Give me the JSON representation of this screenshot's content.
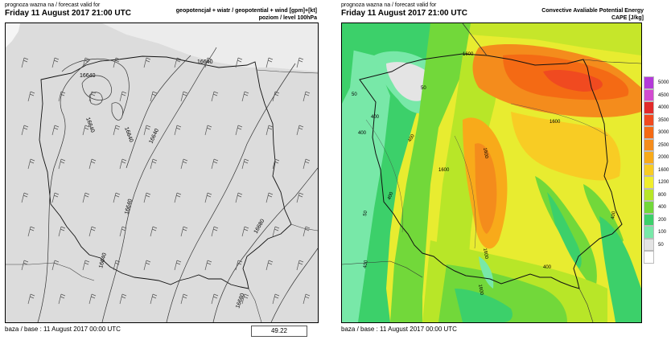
{
  "left": {
    "forecast_label": "prognoza wazna na / forecast valid for",
    "date": "Friday 11 August 2017  21:00 UTC",
    "param_line1": "geopotencjał + wiatr / geopotential + wind [gpm]+[kt]",
    "param_line2": "poziom / level 100hPa",
    "base_label": "baza / base : 11 August 2017  00:00 UTC",
    "value_box": "49.22",
    "contours": [
      "16640",
      "16640",
      "16640",
      "16640",
      "16640",
      "16640",
      "16680",
      "16680"
    ]
  },
  "right": {
    "forecast_label": "prognoza wazna na / forecast valid for",
    "date": "Friday 11 August 2017  21:00 UTC",
    "title_line1": "Convective Avaliable Potential Energy",
    "title_line2": "CAPE [J/kg]",
    "base_label": "baza / base : 11 August 2017  00:00 UTC",
    "map_labels": [
      "1600",
      "1600",
      "1600",
      "1600",
      "1600",
      "1600",
      "400",
      "400",
      "400",
      "400",
      "400",
      "400",
      "50",
      "50",
      "50",
      "400"
    ],
    "legend": [
      {
        "label": "5000",
        "color": "#b43ad9"
      },
      {
        "label": "4500",
        "color": "#d24ad0"
      },
      {
        "label": "4000",
        "color": "#e22a2a"
      },
      {
        "label": "3500",
        "color": "#f04a20"
      },
      {
        "label": "3000",
        "color": "#f46a14"
      },
      {
        "label": "2500",
        "color": "#f48c1c"
      },
      {
        "label": "2000",
        "color": "#f8aa1a"
      },
      {
        "label": "1600",
        "color": "#f8cc24"
      },
      {
        "label": "1200",
        "color": "#f0ee2c"
      },
      {
        "label": "800",
        "color": "#b8e628"
      },
      {
        "label": "400",
        "color": "#72d83a"
      },
      {
        "label": "200",
        "color": "#3cd06a"
      },
      {
        "label": "100",
        "color": "#78e8a8"
      },
      {
        "label": "50",
        "color": "#e4e4e4"
      },
      {
        "label": "",
        "color": "#ffffff"
      }
    ]
  }
}
